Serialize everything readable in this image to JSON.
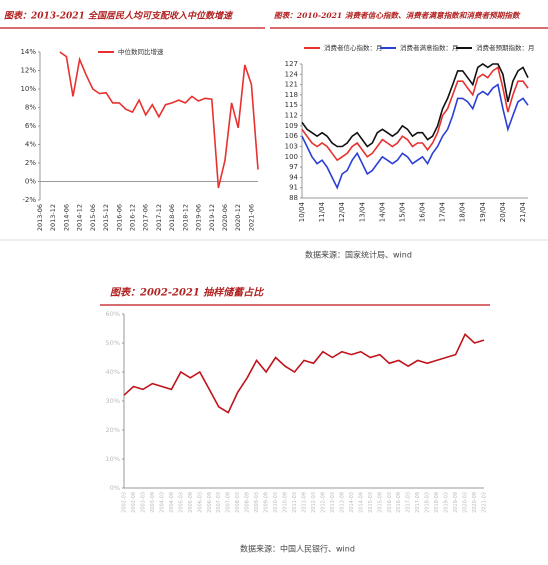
{
  "chart_data": [
    {
      "type": "line",
      "title": "图表：2013-2021 全国居民人均可支配收入中位数增速",
      "categories": [
        "2013-06",
        null,
        "2013-12",
        null,
        "2014-06",
        null,
        "2014-12",
        null,
        "2015-06",
        null,
        "2015-12",
        null,
        "2016-06",
        null,
        "2016-12",
        null,
        "2017-06",
        null,
        "2017-12",
        null,
        "2018-06",
        null,
        "2018-12",
        null,
        "2019-06",
        null,
        "2019-12",
        null,
        "2020-06",
        null,
        "2020-12",
        null,
        "2021-06",
        null
      ],
      "series": [
        {
          "name": "中位数同比增速",
          "color": "#e8312f",
          "values": [
            null,
            null,
            null,
            14,
            13.5,
            9.2,
            13.2,
            11.5,
            10,
            9.5,
            9.6,
            8.5,
            8.5,
            7.8,
            7.5,
            8.8,
            7.2,
            8.3,
            7,
            8.3,
            8.5,
            8.8,
            8.5,
            9.2,
            8.7,
            9,
            8.9,
            -0.7,
            2.3,
            8.5,
            5.8,
            12.6,
            10.5,
            1.3
          ]
        }
      ],
      "ylim": [
        -2,
        14
      ],
      "yticks": [
        {
          "value": -2,
          "label": "-2%"
        },
        {
          "value": 0,
          "label": "0%"
        },
        {
          "value": 2,
          "label": "2%"
        },
        {
          "value": 4,
          "label": "4%"
        },
        {
          "value": 6,
          "label": "6%"
        },
        {
          "value": 8,
          "label": "8%"
        },
        {
          "value": 10,
          "label": "10%"
        },
        {
          "value": 12,
          "label": "12%"
        },
        {
          "value": 14,
          "label": "14%"
        }
      ],
      "grid": false
    },
    {
      "type": "line",
      "title": "图表：2010-2021 消费者信心指数、消费者满意指数和消费者预期指数",
      "categories": [
        "10/04",
        null,
        null,
        null,
        "11/04",
        null,
        null,
        null,
        "12/04",
        null,
        null,
        null,
        "13/04",
        null,
        null,
        null,
        "14/04",
        null,
        null,
        null,
        "15/04",
        null,
        null,
        null,
        "16/04",
        null,
        null,
        null,
        "17/04",
        null,
        null,
        null,
        "18/04",
        null,
        null,
        null,
        "19/04",
        null,
        null,
        null,
        "20/04",
        null,
        null,
        null,
        "21/04",
        null
      ],
      "series": [
        {
          "name": "消费者信心指数：月",
          "color": "#e8312f",
          "values": [
            108,
            106,
            104,
            103,
            104,
            103,
            101,
            99,
            100,
            101,
            103,
            104,
            102,
            100,
            101,
            103,
            105,
            104,
            103,
            104,
            106,
            105,
            103,
            104,
            104,
            102,
            104,
            107,
            112,
            114,
            118,
            122,
            122,
            120,
            118,
            123,
            124,
            123,
            125,
            126,
            120,
            113,
            118,
            122,
            122,
            120
          ]
        },
        {
          "name": "消费者满意指数：月",
          "color": "#2b3fd6",
          "values": [
            106,
            103,
            100,
            98,
            99,
            97,
            94,
            91,
            95,
            96,
            99,
            101,
            98,
            95,
            96,
            98,
            100,
            99,
            98,
            99,
            101,
            100,
            98,
            99,
            100,
            98,
            101,
            103,
            106,
            108,
            112,
            117,
            117,
            116,
            114,
            118,
            119,
            118,
            120,
            121,
            114,
            108,
            112,
            116,
            117,
            115
          ]
        },
        {
          "name": "消费者预期指数：月",
          "color": "#111111",
          "values": [
            110,
            108,
            107,
            106,
            107,
            106,
            104,
            103,
            103,
            104,
            106,
            107,
            105,
            103,
            104,
            107,
            108,
            107,
            106,
            107,
            109,
            108,
            106,
            107,
            107,
            105,
            106,
            109,
            114,
            117,
            121,
            125,
            125,
            123,
            121,
            126,
            127,
            126,
            127,
            127,
            124,
            116,
            122,
            125,
            126,
            123
          ]
        }
      ],
      "ylim": [
        88,
        127
      ],
      "yticks": [
        88,
        91,
        94,
        97,
        100,
        103,
        106,
        109,
        112,
        115,
        118,
        121,
        124,
        127
      ],
      "grid": false,
      "source": "数据来源：国家统计局、wind"
    },
    {
      "type": "line",
      "title": "图表：2002-2021 抽样储蓄占比",
      "categories": [
        "2002-03",
        "2002-09",
        "2003-03",
        "2003-09",
        "2004-03",
        "2004-09",
        "2005-03",
        "2005-09",
        "2006-03",
        "2006-09",
        "2007-03",
        "2007-09",
        "2008-03",
        "2008-09",
        "2009-03",
        "2009-09",
        "2010-03",
        "2010-09",
        "2011-03",
        "2011-09",
        "2012-03",
        "2012-09",
        "2013-03",
        "2013-09",
        "2014-03",
        "2014-09",
        "2015-03",
        "2015-09",
        "2016-03",
        "2016-09",
        "2017-03",
        "2017-09",
        "2018-03",
        "2018-09",
        "2019-03",
        "2019-09",
        "2020-03",
        "2020-09",
        "2021-03"
      ],
      "values": [
        32,
        35,
        34,
        36,
        35,
        34,
        40,
        38,
        40,
        34,
        28,
        26,
        33,
        38,
        44,
        40,
        45,
        42,
        40,
        44,
        43,
        47,
        45,
        47,
        46,
        47,
        45,
        46,
        43,
        44,
        42,
        44,
        43,
        44,
        45,
        46,
        53,
        50,
        51
      ],
      "color": "#c0141c",
      "ylim": [
        0,
        60
      ],
      "yticks": [
        {
          "value": 0,
          "label": "0%"
        },
        {
          "value": 10,
          "label": "10%"
        },
        {
          "value": 20,
          "label": "20%"
        },
        {
          "value": 30,
          "label": "30%"
        },
        {
          "value": 40,
          "label": "40%"
        },
        {
          "value": 50,
          "label": "50%"
        },
        {
          "value": 60,
          "label": "60%"
        }
      ],
      "grid": false,
      "source": "数据来源：中国人民银行、wind"
    }
  ]
}
